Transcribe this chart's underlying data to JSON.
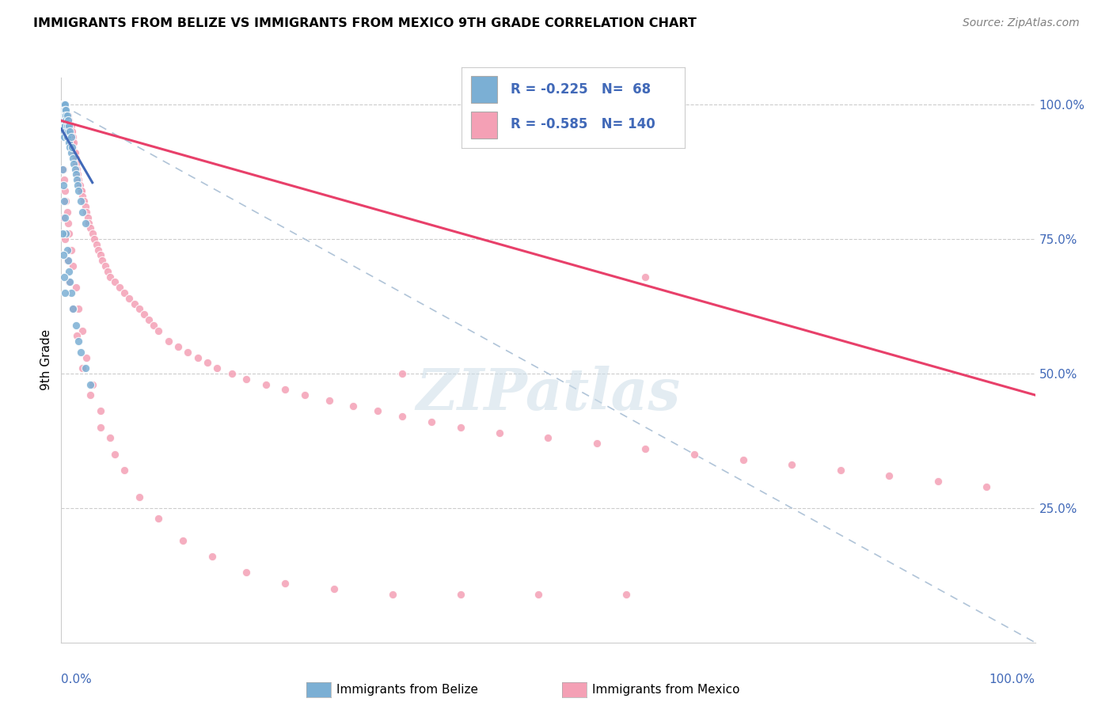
{
  "title": "IMMIGRANTS FROM BELIZE VS IMMIGRANTS FROM MEXICO 9TH GRADE CORRELATION CHART",
  "source": "Source: ZipAtlas.com",
  "ylabel": "9th Grade",
  "right_yticks": [
    "100.0%",
    "75.0%",
    "50.0%",
    "25.0%"
  ],
  "right_ytick_vals": [
    1.0,
    0.75,
    0.5,
    0.25
  ],
  "belize_color": "#7bafd4",
  "mexico_color": "#f4a0b5",
  "belize_line_color": "#4169b8",
  "mexico_line_color": "#e8406a",
  "dashed_line_color": "#b0c4d8",
  "watermark": "ZIPatlas",
  "belize_scatter_x": [
    0.001,
    0.001,
    0.001,
    0.001,
    0.001,
    0.002,
    0.002,
    0.002,
    0.002,
    0.002,
    0.003,
    0.003,
    0.003,
    0.003,
    0.003,
    0.003,
    0.003,
    0.003,
    0.004,
    0.004,
    0.004,
    0.004,
    0.005,
    0.005,
    0.005,
    0.005,
    0.006,
    0.006,
    0.006,
    0.007,
    0.007,
    0.008,
    0.008,
    0.009,
    0.009,
    0.01,
    0.01,
    0.011,
    0.012,
    0.013,
    0.014,
    0.015,
    0.016,
    0.017,
    0.018,
    0.02,
    0.022,
    0.025,
    0.001,
    0.002,
    0.003,
    0.004,
    0.005,
    0.006,
    0.007,
    0.008,
    0.009,
    0.01,
    0.012,
    0.015,
    0.018,
    0.02,
    0.025,
    0.03,
    0.001,
    0.002,
    0.003,
    0.004
  ],
  "belize_scatter_y": [
    1.0,
    1.0,
    1.0,
    0.99,
    0.98,
    1.0,
    1.0,
    0.99,
    0.98,
    0.97,
    1.0,
    1.0,
    0.99,
    0.98,
    0.97,
    0.96,
    0.95,
    0.94,
    1.0,
    0.99,
    0.98,
    0.96,
    0.99,
    0.98,
    0.97,
    0.95,
    0.98,
    0.96,
    0.94,
    0.97,
    0.95,
    0.96,
    0.93,
    0.95,
    0.92,
    0.94,
    0.91,
    0.92,
    0.9,
    0.89,
    0.88,
    0.87,
    0.86,
    0.85,
    0.84,
    0.82,
    0.8,
    0.78,
    0.88,
    0.85,
    0.82,
    0.79,
    0.76,
    0.73,
    0.71,
    0.69,
    0.67,
    0.65,
    0.62,
    0.59,
    0.56,
    0.54,
    0.51,
    0.48,
    0.76,
    0.72,
    0.68,
    0.65
  ],
  "mexico_scatter_x": [
    0.001,
    0.001,
    0.001,
    0.002,
    0.002,
    0.002,
    0.002,
    0.003,
    0.003,
    0.003,
    0.003,
    0.003,
    0.004,
    0.004,
    0.004,
    0.005,
    0.005,
    0.005,
    0.005,
    0.006,
    0.006,
    0.006,
    0.007,
    0.007,
    0.007,
    0.008,
    0.008,
    0.008,
    0.009,
    0.009,
    0.01,
    0.01,
    0.01,
    0.011,
    0.011,
    0.012,
    0.012,
    0.013,
    0.013,
    0.014,
    0.015,
    0.015,
    0.016,
    0.017,
    0.018,
    0.019,
    0.02,
    0.021,
    0.022,
    0.023,
    0.025,
    0.026,
    0.027,
    0.028,
    0.03,
    0.032,
    0.034,
    0.036,
    0.038,
    0.04,
    0.042,
    0.045,
    0.048,
    0.05,
    0.055,
    0.06,
    0.065,
    0.07,
    0.075,
    0.08,
    0.085,
    0.09,
    0.095,
    0.1,
    0.11,
    0.12,
    0.13,
    0.14,
    0.15,
    0.16,
    0.175,
    0.19,
    0.21,
    0.23,
    0.25,
    0.275,
    0.3,
    0.325,
    0.35,
    0.38,
    0.41,
    0.45,
    0.5,
    0.55,
    0.6,
    0.65,
    0.7,
    0.75,
    0.8,
    0.85,
    0.9,
    0.95,
    0.002,
    0.003,
    0.004,
    0.005,
    0.006,
    0.007,
    0.008,
    0.01,
    0.012,
    0.015,
    0.018,
    0.022,
    0.026,
    0.032,
    0.04,
    0.05,
    0.065,
    0.08,
    0.1,
    0.125,
    0.155,
    0.19,
    0.23,
    0.28,
    0.34,
    0.41,
    0.49,
    0.58,
    0.002,
    0.004,
    0.006,
    0.008,
    0.012,
    0.016,
    0.022,
    0.03,
    0.04,
    0.055,
    0.35,
    0.6
  ],
  "mexico_scatter_y": [
    1.0,
    1.0,
    0.99,
    1.0,
    1.0,
    0.99,
    0.98,
    1.0,
    0.99,
    0.98,
    0.97,
    0.96,
    0.99,
    0.98,
    0.97,
    0.99,
    0.98,
    0.97,
    0.96,
    0.98,
    0.97,
    0.96,
    0.98,
    0.97,
    0.95,
    0.97,
    0.96,
    0.94,
    0.96,
    0.94,
    0.96,
    0.95,
    0.93,
    0.95,
    0.93,
    0.94,
    0.92,
    0.93,
    0.91,
    0.91,
    0.9,
    0.89,
    0.88,
    0.87,
    0.86,
    0.85,
    0.84,
    0.84,
    0.83,
    0.82,
    0.81,
    0.8,
    0.79,
    0.78,
    0.77,
    0.76,
    0.75,
    0.74,
    0.73,
    0.72,
    0.71,
    0.7,
    0.69,
    0.68,
    0.67,
    0.66,
    0.65,
    0.64,
    0.63,
    0.62,
    0.61,
    0.6,
    0.59,
    0.58,
    0.56,
    0.55,
    0.54,
    0.53,
    0.52,
    0.51,
    0.5,
    0.49,
    0.48,
    0.47,
    0.46,
    0.45,
    0.44,
    0.43,
    0.42,
    0.41,
    0.4,
    0.39,
    0.38,
    0.37,
    0.36,
    0.35,
    0.34,
    0.33,
    0.32,
    0.31,
    0.3,
    0.29,
    0.88,
    0.86,
    0.84,
    0.82,
    0.8,
    0.78,
    0.76,
    0.73,
    0.7,
    0.66,
    0.62,
    0.58,
    0.53,
    0.48,
    0.43,
    0.38,
    0.32,
    0.27,
    0.23,
    0.19,
    0.16,
    0.13,
    0.11,
    0.1,
    0.09,
    0.09,
    0.09,
    0.09,
    0.79,
    0.75,
    0.71,
    0.67,
    0.62,
    0.57,
    0.51,
    0.46,
    0.4,
    0.35,
    0.5,
    0.68
  ],
  "xlim": [
    0.0,
    1.0
  ],
  "ylim": [
    0.0,
    1.05
  ],
  "belize_line_x": [
    0.0,
    0.032
  ],
  "belize_line_y": [
    0.955,
    0.855
  ],
  "mexico_line_x": [
    0.0,
    1.0
  ],
  "mexico_line_y": [
    0.97,
    0.46
  ],
  "dashed_line_x": [
    0.0,
    1.0
  ],
  "dashed_line_y": [
    1.0,
    0.0
  ]
}
